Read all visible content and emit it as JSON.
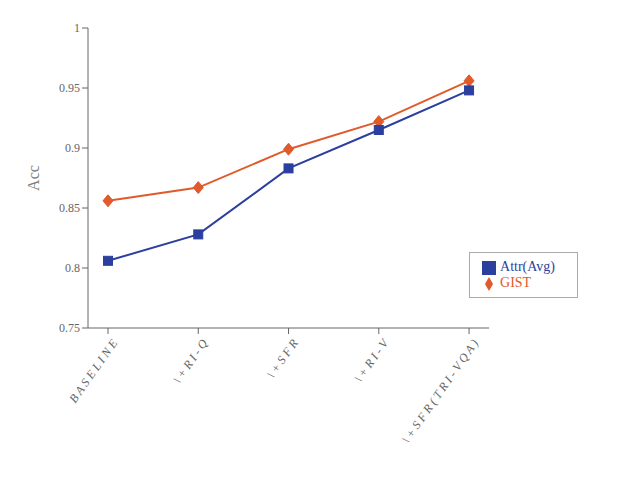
{
  "chart_data": {
    "type": "line",
    "categories": [
      "B A S E L I N E",
      "\\ + R I - Q",
      "\\ + S F R",
      "\\ + R I - V",
      "\\ + S F R ( T R I - V Q A )"
    ],
    "series": [
      {
        "name": "GIST",
        "color": "#E05A2B",
        "marker": "diamond",
        "values": [
          0.856,
          0.867,
          0.899,
          0.922,
          0.956
        ]
      },
      {
        "name": "Attr(Avg)",
        "color": "#2B3F9E",
        "marker": "square",
        "values": [
          0.806,
          0.828,
          0.883,
          0.915,
          0.948
        ]
      }
    ],
    "ylabel": "Acc",
    "ylim": [
      0.75,
      1
    ],
    "yticks": [
      0.75,
      0.8,
      0.85,
      0.9,
      0.95,
      1
    ],
    "grid": false,
    "legend": "lower right"
  }
}
